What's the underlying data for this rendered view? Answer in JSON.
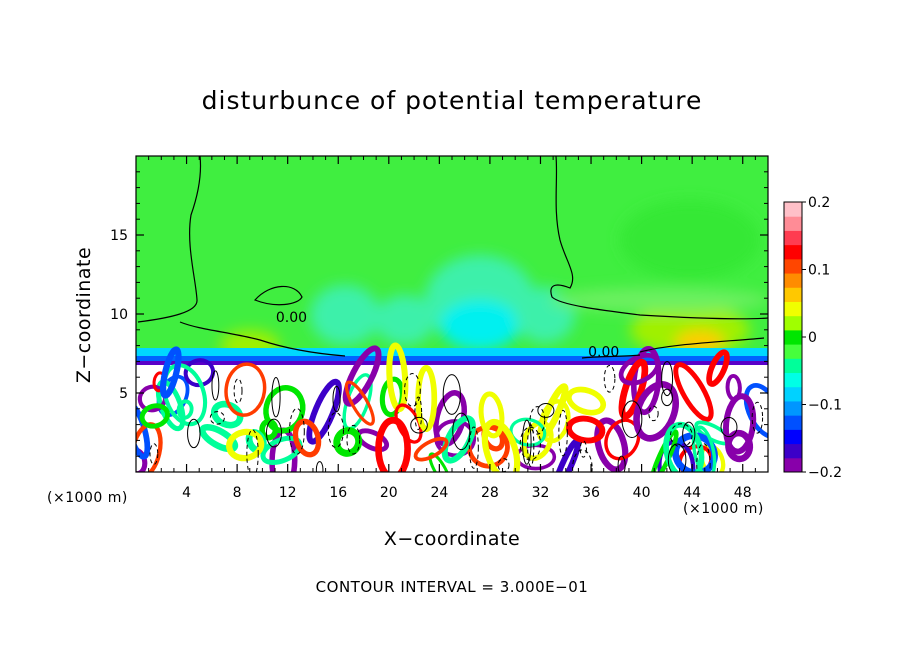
{
  "chart_data": {
    "type": "heatmap",
    "title": "disturbunce of potential temperature",
    "xlabel": "X−coordinate",
    "ylabel": "Z−coordinate",
    "x_unit_left": "(×1000 m)",
    "x_unit_right": "(×1000 m)",
    "note": "CONTOUR INTERVAL = 3.000E−01",
    "xlim": [
      0,
      50
    ],
    "ylim": [
      0,
      20
    ],
    "xticks": [
      4,
      8,
      12,
      16,
      20,
      24,
      28,
      32,
      36,
      40,
      44,
      48
    ],
    "xtick_labels": [
      "4",
      "8",
      "12",
      "16",
      "20",
      "24",
      "28",
      "32",
      "36",
      "40",
      "44",
      "48"
    ],
    "yticks": [
      5,
      10,
      15
    ],
    "ytick_labels": [
      "5",
      "10",
      "15"
    ],
    "contour_labels": [
      {
        "text": "0.00",
        "x": 12.3,
        "z": 9.5
      },
      {
        "text": "0.00",
        "x": 37.0,
        "z": 7.3
      }
    ],
    "colorbar": {
      "ticks": [
        0.2,
        0.1,
        0,
        -0.1,
        -0.2
      ],
      "tick_labels": [
        "0.2",
        "0.1",
        "0",
        "−0.1",
        "−0.2"
      ],
      "range": [
        -0.2,
        0.2
      ],
      "colors": [
        "#8800aa",
        "#3c00c8",
        "#0000ff",
        "#0050ff",
        "#0096ff",
        "#00d2ff",
        "#00ffe6",
        "#00ff9a",
        "#46ff3c",
        "#00e600",
        "#a0ff00",
        "#f0ff00",
        "#ffc800",
        "#ff8c00",
        "#ff4600",
        "#ff0000",
        "#ff3c50",
        "#ff8c96",
        "#ffc0c8"
      ]
    },
    "colors": {
      "background_field": "#48f048",
      "inversion_band": "#00c8ff",
      "lower_layer_neutral": "#ffffff"
    }
  }
}
